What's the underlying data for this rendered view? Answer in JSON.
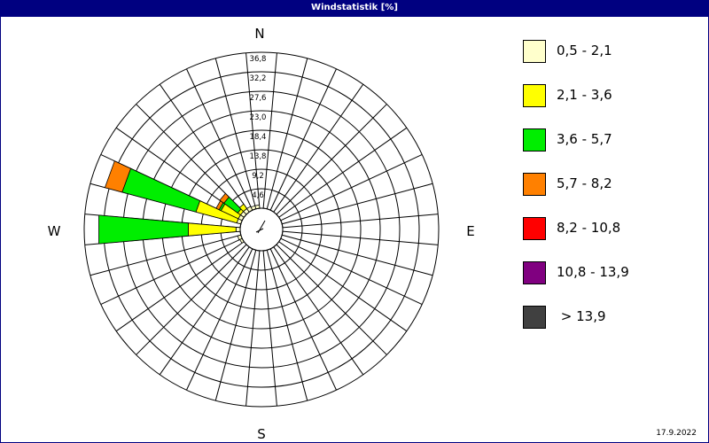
{
  "window": {
    "title": "Windstatistik [%]"
  },
  "footer": {
    "date": "17.9.2022"
  },
  "chart_data": {
    "type": "polar-stacked-bar",
    "title": "Windstatistik [%]",
    "directions": {
      "north": "N",
      "east": "E",
      "south": "S",
      "west": "W"
    },
    "radial_ticks": [
      "4,6",
      "9,2",
      "13,8",
      "18,4",
      "23,0",
      "27,6",
      "32,2",
      "36,8"
    ],
    "radial_max": 36.8,
    "sector_count": 36,
    "bins": [
      {
        "label": "0,5 - 2,1",
        "color": "#ffffcc"
      },
      {
        "label": "2,1 - 3,6",
        "color": "#ffff00"
      },
      {
        "label": "3,6 - 5,7",
        "color": "#00ee00"
      },
      {
        "label": "5,7 - 8,2",
        "color": "#ff8000"
      },
      {
        "label": "8,2 - 10,8",
        "color": "#ff0000"
      },
      {
        "label": "10,8 - 13,9",
        "color": "#800080"
      },
      {
        "label": " > 13,9",
        "color": "#404040"
      }
    ],
    "sectors": [
      {
        "direction_deg": 270,
        "values": [
          1.0,
          11.3,
          21.2,
          0,
          0,
          0,
          0
        ]
      },
      {
        "direction_deg": 290,
        "values": [
          1.0,
          10.0,
          18.0,
          4.2,
          0,
          0,
          0
        ]
      },
      {
        "direction_deg": 300,
        "values": [
          1.0,
          4.5,
          0.5,
          0.8,
          0,
          0,
          0
        ]
      },
      {
        "direction_deg": 310,
        "values": [
          1.0,
          0.8,
          4.0,
          1.2,
          0,
          0,
          0
        ]
      },
      {
        "direction_deg": 320,
        "values": [
          1.0,
          1.3,
          0,
          0,
          0,
          0,
          0
        ]
      },
      {
        "direction_deg": 330,
        "values": [
          1.0,
          0,
          0,
          0,
          0,
          0,
          0
        ]
      },
      {
        "direction_deg": 340,
        "values": [
          0.8,
          0,
          0,
          0,
          0,
          0,
          0
        ]
      },
      {
        "direction_deg": 350,
        "values": [
          0.8,
          0,
          0,
          0,
          0,
          0,
          0
        ]
      },
      {
        "direction_deg": 250,
        "values": [
          0.8,
          0,
          0,
          0,
          0,
          0,
          0
        ]
      },
      {
        "direction_deg": 240,
        "values": [
          0.6,
          0,
          0,
          0,
          0,
          0,
          0
        ]
      }
    ]
  }
}
